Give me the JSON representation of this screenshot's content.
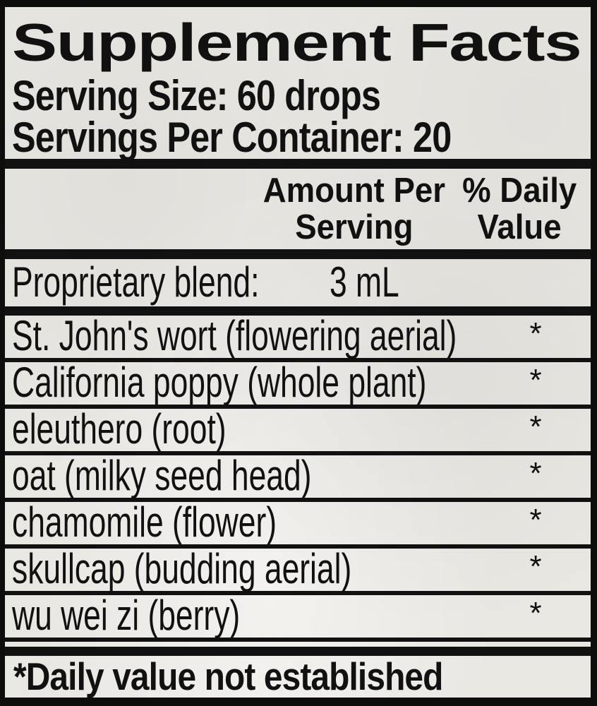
{
  "label": {
    "title": "Supplement Facts",
    "serving_size": "Serving Size: 60 drops",
    "servings_per_container": "Servings Per Container: 20",
    "columns": {
      "amount": {
        "line1": "Amount Per",
        "line2": "Serving"
      },
      "daily_value": {
        "line1": "% Daily",
        "line2": "Value"
      }
    },
    "blend": {
      "name": "Proprietary blend:",
      "amount": "3 mL"
    },
    "ingredients": [
      {
        "name": "St. John's wort (flowering aerial)",
        "daily_value": "*"
      },
      {
        "name": "California poppy (whole plant)",
        "daily_value": "*"
      },
      {
        "name": "eleuthero (root)",
        "daily_value": "*"
      },
      {
        "name": "oat (milky seed head)",
        "daily_value": "*"
      },
      {
        "name": "chamomile (flower)",
        "daily_value": "*"
      },
      {
        "name": "skullcap (budding aerial)",
        "daily_value": "*"
      },
      {
        "name": "wu wei zi (berry)",
        "daily_value": "*"
      }
    ],
    "footnote": "*Daily value not established",
    "colors": {
      "paper": "#e9e7e2",
      "ink": "#111111"
    }
  }
}
